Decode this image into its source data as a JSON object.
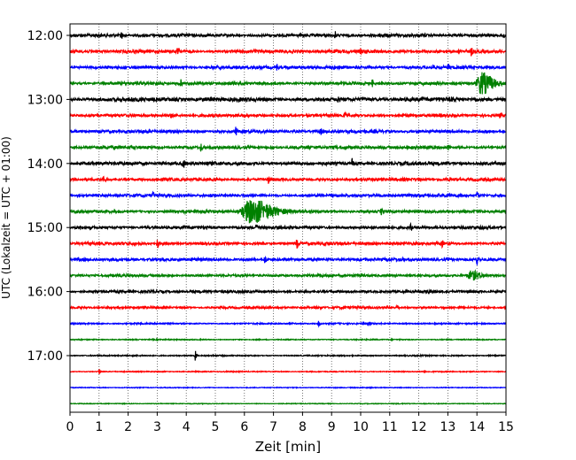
{
  "chart_data": {
    "type": "line",
    "title": "",
    "xlabel": "Zeit  [min]",
    "ylabel": "UTC (Lokalzeit = UTC + 01:00)",
    "xlim": [
      0,
      15
    ],
    "x_ticks": [
      "0",
      "1",
      "2",
      "3",
      "4",
      "5",
      "6",
      "7",
      "8",
      "9",
      "10",
      "11",
      "12",
      "13",
      "14",
      "15"
    ],
    "y_ticks": [
      "12:00",
      "13:00",
      "14:00",
      "15:00",
      "16:00",
      "17:00"
    ],
    "grid": "vertical dotted",
    "row_interval_min": 15,
    "colors": [
      "#000000",
      "#ff0000",
      "#0000ff",
      "#008000"
    ],
    "series": [
      {
        "start": "12:00",
        "color": "#000000",
        "amp": 0.75,
        "events": [
          {
            "t": 1.75,
            "a": 2.4
          },
          {
            "t": 9.1,
            "a": 2.2
          },
          {
            "t": 14.9,
            "a": 1.6
          }
        ]
      },
      {
        "start": "12:15",
        "color": "#ff0000",
        "amp": 0.8,
        "events": [
          {
            "t": 3.7,
            "a": 2.4
          },
          {
            "t": 13.8,
            "a": 2.2
          },
          {
            "t": 10.0,
            "a": 1.0
          }
        ]
      },
      {
        "start": "12:30",
        "color": "#0000ff",
        "amp": 0.75,
        "events": [
          {
            "t": 7.1,
            "a": 2.0
          },
          {
            "t": 13.0,
            "a": 1.4
          },
          {
            "t": 12.5,
            "a": 1.0
          }
        ]
      },
      {
        "start": "12:45",
        "color": "#008000",
        "amp": 0.7,
        "events": [
          {
            "t": 3.8,
            "a": 2.0
          },
          {
            "t": 10.4,
            "a": 1.8
          },
          {
            "t": 14.15,
            "a": 5.5,
            "wide": 0.35
          }
        ]
      },
      {
        "start": "13:00",
        "color": "#000000",
        "amp": 0.95,
        "events": [
          {
            "t": 9.2,
            "a": 2.2
          },
          {
            "t": 2.1,
            "a": 1.2
          }
        ]
      },
      {
        "start": "13:15",
        "color": "#ff0000",
        "amp": 0.7,
        "events": [
          {
            "t": 3.45,
            "a": 2.4
          },
          {
            "t": 9.45,
            "a": 2.0
          },
          {
            "t": 14.8,
            "a": 2.2
          }
        ]
      },
      {
        "start": "13:30",
        "color": "#0000ff",
        "amp": 0.75,
        "events": [
          {
            "t": 5.7,
            "a": 1.8
          },
          {
            "t": 8.6,
            "a": 2.2
          }
        ]
      },
      {
        "start": "13:45",
        "color": "#008000",
        "amp": 0.75,
        "events": [
          {
            "t": 4.5,
            "a": 1.8
          },
          {
            "t": 13.0,
            "a": 1.2
          }
        ]
      },
      {
        "start": "14:00",
        "color": "#000000",
        "amp": 0.8,
        "events": [
          {
            "t": 3.9,
            "a": 2.4
          },
          {
            "t": 9.7,
            "a": 2.2
          }
        ]
      },
      {
        "start": "14:15",
        "color": "#ff0000",
        "amp": 0.7,
        "events": [
          {
            "t": 1.15,
            "a": 2.4
          },
          {
            "t": 6.8,
            "a": 2.2
          }
        ]
      },
      {
        "start": "14:30",
        "color": "#0000ff",
        "amp": 0.7,
        "events": [
          {
            "t": 2.85,
            "a": 2.0
          },
          {
            "t": 14.0,
            "a": 2.2
          }
        ]
      },
      {
        "start": "14:45",
        "color": "#008000",
        "amp": 0.7,
        "events": [
          {
            "t": 6.2,
            "a": 6.2,
            "wide": 0.6
          },
          {
            "t": 3.9,
            "a": 1.6
          },
          {
            "t": 10.7,
            "a": 1.6
          }
        ]
      },
      {
        "start": "15:00",
        "color": "#000000",
        "amp": 0.7,
        "events": [
          {
            "t": 6.4,
            "a": 2.8
          },
          {
            "t": 11.7,
            "a": 2.2
          }
        ]
      },
      {
        "start": "15:15",
        "color": "#ff0000",
        "amp": 0.7,
        "events": [
          {
            "t": 3.0,
            "a": 2.4
          },
          {
            "t": 7.8,
            "a": 2.0
          },
          {
            "t": 12.8,
            "a": 1.4
          }
        ]
      },
      {
        "start": "15:30",
        "color": "#0000ff",
        "amp": 0.7,
        "events": [
          {
            "t": 6.7,
            "a": 2.0
          },
          {
            "t": 14.0,
            "a": 2.2
          }
        ]
      },
      {
        "start": "15:45",
        "color": "#008000",
        "amp": 0.6,
        "events": [
          {
            "t": 13.8,
            "a": 2.2,
            "wide": 0.3
          }
        ]
      },
      {
        "start": "16:00",
        "color": "#000000",
        "amp": 0.65,
        "events": [
          {
            "t": 12.3,
            "a": 1.2
          }
        ]
      },
      {
        "start": "16:15",
        "color": "#ff0000",
        "amp": 0.55,
        "events": [
          {
            "t": 11.25,
            "a": 2.2
          }
        ]
      },
      {
        "start": "16:30",
        "color": "#0000ff",
        "amp": 0.35,
        "events": [
          {
            "t": 8.55,
            "a": 1.6
          }
        ]
      },
      {
        "start": "16:45",
        "color": "#008000",
        "amp": 0.25,
        "events": []
      },
      {
        "start": "17:00",
        "color": "#000000",
        "amp": 0.3,
        "events": [
          {
            "t": 4.3,
            "a": 2.4
          }
        ]
      },
      {
        "start": "17:15",
        "color": "#ff0000",
        "amp": 0.25,
        "events": [
          {
            "t": 1.0,
            "a": 1.6
          }
        ]
      },
      {
        "start": "17:30",
        "color": "#0000ff",
        "amp": 0.2,
        "events": []
      },
      {
        "start": "17:45",
        "color": "#008000",
        "amp": 0.18,
        "events": []
      }
    ]
  }
}
